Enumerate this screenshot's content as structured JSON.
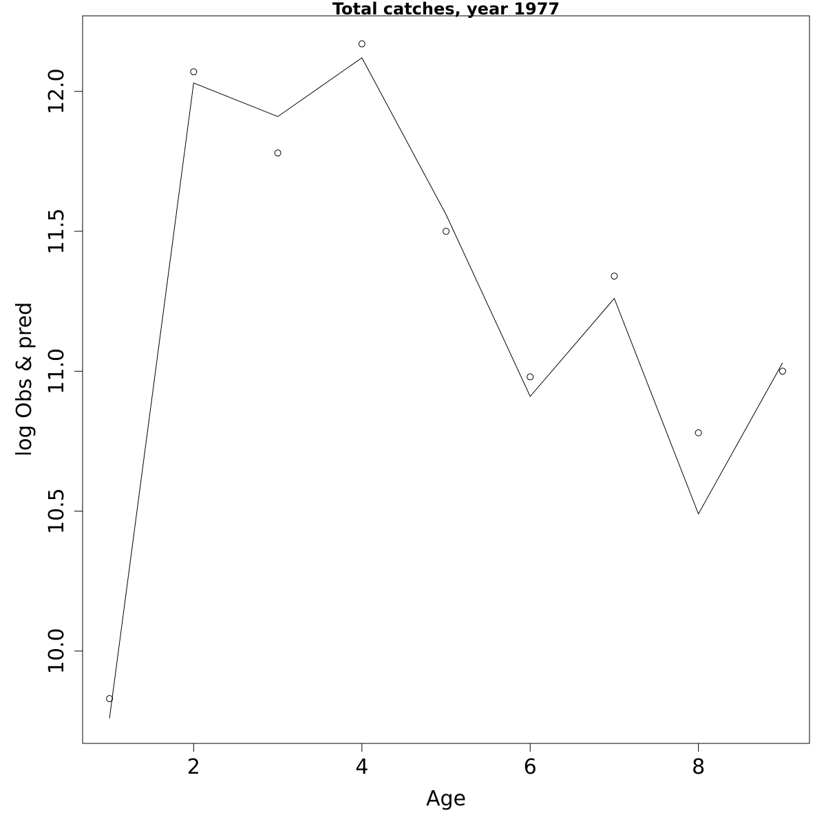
{
  "chart_data": {
    "type": "line",
    "title": "Total catches, year 1977",
    "xlabel": "Age",
    "ylabel": "log Obs & pred",
    "xlim": [
      0.68,
      9.32
    ],
    "ylim": [
      9.67,
      12.27
    ],
    "x_ticks": [
      2,
      4,
      6,
      8
    ],
    "y_ticks": [
      10.0,
      10.5,
      11.0,
      11.5,
      12.0
    ],
    "x_tick_labels": [
      "2",
      "4",
      "6",
      "8"
    ],
    "y_tick_labels": [
      "10.0",
      "10.5",
      "11.0",
      "11.5",
      "12.0"
    ],
    "grid": false,
    "series": [
      {
        "name": "",
        "style": "points",
        "marker": "open-circle",
        "x": [
          1,
          2,
          3,
          4,
          5,
          6,
          7,
          8,
          9
        ],
        "y": [
          9.83,
          12.07,
          11.78,
          12.17,
          11.5,
          10.98,
          11.34,
          10.78,
          11.0
        ]
      },
      {
        "name": "",
        "style": "line",
        "x": [
          1,
          2,
          3,
          4,
          5,
          6,
          7,
          8,
          9
        ],
        "y": [
          9.76,
          12.03,
          11.91,
          12.12,
          11.56,
          10.91,
          11.26,
          10.49,
          11.03
        ]
      }
    ]
  }
}
